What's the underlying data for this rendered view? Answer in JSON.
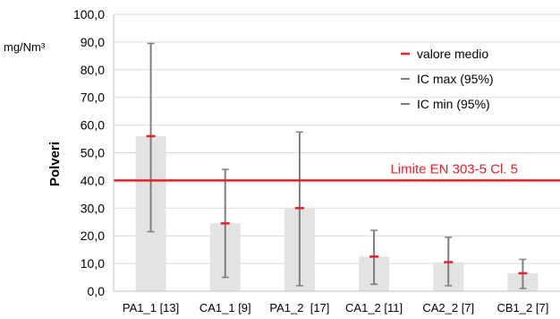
{
  "chart_data": {
    "type": "bar",
    "ylabel": "Polveri",
    "unit": "mg/Nm³",
    "ylim": [
      0,
      100
    ],
    "yticks": [
      "0,0",
      "10,0",
      "20,0",
      "30,0",
      "40,0",
      "50,0",
      "60,0",
      "70,0",
      "80,0",
      "90,0",
      "100,0"
    ],
    "grid": true,
    "legend_position": "top-right",
    "categories": [
      "PA1_1 [13]",
      "CA1_1 [9]",
      "PA1_2  [17]",
      "CA1_2 [11]",
      "CA2_2 [7]",
      "CB1_2 [7]"
    ],
    "series": [
      {
        "name": "valore medio",
        "values": [
          56,
          24.5,
          30,
          12.5,
          10.5,
          6.5
        ]
      },
      {
        "name": "IC max (95%)",
        "values": [
          89.5,
          44,
          57.5,
          22,
          19.5,
          11.5
        ]
      },
      {
        "name": "IC min (95%)",
        "values": [
          21.5,
          5,
          2,
          2.5,
          2,
          1
        ]
      }
    ],
    "limit_line": {
      "label": "Limite EN 303-5 Cl. 5",
      "value": 40
    },
    "colors": {
      "bar": "#e3e3e3",
      "mean_marker": "#e8202a",
      "error_bar": "#7f7f7f",
      "limit": "#e8202a",
      "grid": "#d9d9d9",
      "text": "#000000"
    }
  }
}
